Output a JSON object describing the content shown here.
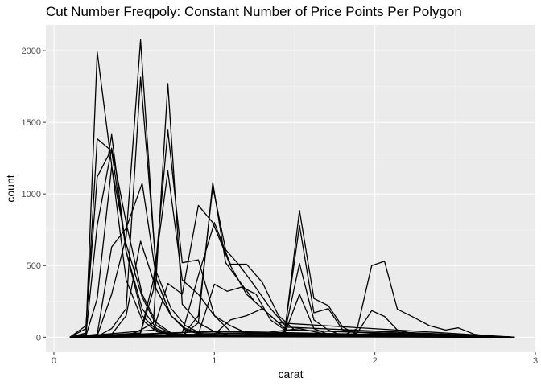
{
  "chart_data": {
    "type": "line",
    "title": "Cut Number Freqpoly: Constant Number of Price Points Per Polygon",
    "xlabel": "carat",
    "ylabel": "count",
    "xlim": [
      -0.05,
      3.0
    ],
    "ylim": [
      -105,
      2180
    ],
    "xticks": [
      0,
      1,
      2,
      3
    ],
    "xtick_labels": [
      "0",
      "1",
      "2",
      "3"
    ],
    "yticks": [
      0,
      500,
      1000,
      1500,
      2000
    ],
    "ytick_labels": [
      "0",
      "500",
      "1000",
      "1500",
      "2000"
    ],
    "grid": true,
    "legend": "none",
    "colors": {
      "panel": "#ebebeb",
      "grid_major": "#ffffff",
      "grid_minor": "#f4f4f4",
      "line": "#000000",
      "axis_text": "#4d4d4d",
      "tick": "#333333"
    },
    "series": [
      {
        "x": [
          0.1,
          0.2,
          0.27,
          0.36,
          0.45,
          0.55,
          0.64,
          0.73,
          0.82,
          0.91,
          1.0,
          2.87
        ],
        "y": [
          0,
          30,
          1990,
          1200,
          400,
          120,
          40,
          15,
          8,
          5,
          3,
          0
        ]
      },
      {
        "x": [
          0.1,
          0.2,
          0.27,
          0.36,
          0.45,
          0.55,
          0.64,
          0.73,
          0.82,
          2.87
        ],
        "y": [
          0,
          60,
          1385,
          1300,
          600,
          150,
          50,
          15,
          5,
          0
        ]
      },
      {
        "x": [
          0.1,
          0.2,
          0.27,
          0.34,
          0.36,
          0.45,
          0.55,
          0.64,
          0.73,
          2.87
        ],
        "y": [
          0,
          80,
          1120,
          1270,
          1415,
          600,
          200,
          60,
          20,
          0
        ]
      },
      {
        "x": [
          0.1,
          0.2,
          0.27,
          0.36,
          0.45,
          0.55,
          0.64,
          0.73,
          0.82,
          2.87
        ],
        "y": [
          0,
          20,
          780,
          1320,
          800,
          300,
          100,
          30,
          10,
          0
        ]
      },
      {
        "x": [
          0.1,
          0.2,
          0.27,
          0.36,
          0.45,
          0.55,
          0.64,
          0.73,
          0.82,
          2.87
        ],
        "y": [
          0,
          10,
          270,
          1190,
          650,
          280,
          80,
          25,
          8,
          0
        ]
      },
      {
        "x": [
          0.1,
          0.27,
          0.36,
          0.45,
          0.55,
          0.64,
          0.73,
          0.82,
          0.91,
          2.87
        ],
        "y": [
          0,
          20,
          630,
          760,
          1075,
          400,
          150,
          50,
          20,
          0
        ]
      },
      {
        "x": [
          0.1,
          0.27,
          0.36,
          0.45,
          0.54,
          0.64,
          0.73,
          0.82,
          0.91,
          2.87
        ],
        "y": [
          0,
          10,
          300,
          700,
          2075,
          400,
          150,
          60,
          20,
          0
        ]
      },
      {
        "x": [
          0.1,
          0.27,
          0.36,
          0.45,
          0.54,
          0.64,
          0.73,
          0.82,
          0.91,
          2.87
        ],
        "y": [
          0,
          5,
          60,
          200,
          1815,
          450,
          200,
          80,
          30,
          0
        ]
      },
      {
        "x": [
          0.1,
          0.36,
          0.45,
          0.54,
          0.64,
          0.73,
          0.82,
          0.91,
          1.0,
          2.87
        ],
        "y": [
          0,
          20,
          150,
          670,
          330,
          150,
          60,
          25,
          10,
          0
        ]
      },
      {
        "x": [
          0.1,
          0.45,
          0.54,
          0.62,
          0.71,
          0.8,
          0.9,
          1.0,
          1.1,
          2.87
        ],
        "y": [
          0,
          5,
          50,
          100,
          1770,
          230,
          100,
          40,
          15,
          0
        ]
      },
      {
        "x": [
          0.1,
          0.45,
          0.54,
          0.62,
          0.71,
          0.8,
          0.9,
          1.0,
          1.1,
          2.87
        ],
        "y": [
          0,
          5,
          30,
          330,
          1445,
          520,
          540,
          150,
          40,
          0
        ]
      },
      {
        "x": [
          0.1,
          0.54,
          0.62,
          0.71,
          0.8,
          0.9,
          1.0,
          1.1,
          1.2,
          2.87
        ],
        "y": [
          0,
          30,
          400,
          1160,
          400,
          300,
          150,
          80,
          30,
          0
        ]
      },
      {
        "x": [
          0.1,
          0.62,
          0.71,
          0.8,
          0.9,
          0.99,
          1.1,
          1.2,
          1.3,
          1.4,
          2.87
        ],
        "y": [
          0,
          50,
          375,
          300,
          920,
          800,
          500,
          300,
          200,
          100,
          0
        ]
      },
      {
        "x": [
          0.1,
          0.8,
          0.9,
          0.99,
          1.07,
          1.15,
          1.25,
          1.35,
          1.45,
          2.87
        ],
        "y": [
          0,
          10,
          100,
          1080,
          520,
          400,
          250,
          150,
          50,
          0
        ]
      },
      {
        "x": [
          0.1,
          0.8,
          0.9,
          0.99,
          1.07,
          1.15,
          1.25,
          1.35,
          1.45,
          2.87
        ],
        "y": [
          0,
          10,
          150,
          1050,
          610,
          510,
          360,
          200,
          70,
          0
        ]
      },
      {
        "x": [
          0.1,
          0.8,
          0.9,
          1.0,
          1.1,
          1.2,
          1.3,
          1.4,
          1.5,
          2.87
        ],
        "y": [
          0,
          30,
          430,
          800,
          510,
          510,
          380,
          150,
          50,
          0
        ]
      },
      {
        "x": [
          0.1,
          0.9,
          1.0,
          1.08,
          1.17,
          1.26,
          1.35,
          1.44,
          1.53,
          1.62,
          1.71,
          1.8,
          1.89,
          2.87
        ],
        "y": [
          0,
          20,
          370,
          320,
          350,
          300,
          120,
          50,
          885,
          270,
          220,
          70,
          20,
          0
        ]
      },
      {
        "x": [
          0.1,
          1.0,
          1.1,
          1.2,
          1.3,
          1.44,
          1.53,
          1.62,
          1.71,
          1.8,
          2.87
        ],
        "y": [
          0,
          20,
          120,
          150,
          200,
          60,
          780,
          170,
          200,
          50,
          0
        ]
      },
      {
        "x": [
          0.1,
          1.35,
          1.44,
          1.53,
          1.62,
          1.71,
          1.8,
          2.87
        ],
        "y": [
          0,
          10,
          40,
          515,
          120,
          50,
          10,
          0
        ]
      },
      {
        "x": [
          0.1,
          1.35,
          1.44,
          1.53,
          1.62,
          1.71,
          2.87
        ],
        "y": [
          0,
          5,
          30,
          300,
          60,
          20,
          0
        ]
      },
      {
        "x": [
          0.1,
          1.8,
          1.89,
          1.98,
          2.06,
          2.14,
          2.24,
          2.34,
          2.44,
          2.52,
          2.62,
          2.72,
          2.87
        ],
        "y": [
          0,
          10,
          60,
          500,
          530,
          195,
          140,
          80,
          50,
          65,
          20,
          5,
          0
        ]
      },
      {
        "x": [
          0.1,
          1.8,
          1.89,
          1.98,
          2.06,
          2.14,
          2.24,
          2.34,
          2.44,
          2.87
        ],
        "y": [
          0,
          5,
          30,
          185,
          145,
          50,
          25,
          10,
          5,
          0
        ]
      },
      {
        "x": [
          0.1,
          0.5,
          0.7,
          1.0,
          1.3,
          1.53,
          1.7,
          2.0,
          2.5,
          2.87
        ],
        "y": [
          0,
          20,
          30,
          40,
          30,
          60,
          20,
          15,
          5,
          0
        ]
      },
      {
        "x": [
          0.1,
          0.4,
          0.6,
          0.8,
          1.0,
          1.2,
          1.5,
          1.7,
          2.0,
          2.5,
          2.87
        ],
        "y": [
          0,
          15,
          10,
          20,
          15,
          10,
          30,
          10,
          25,
          10,
          0
        ]
      }
    ]
  }
}
